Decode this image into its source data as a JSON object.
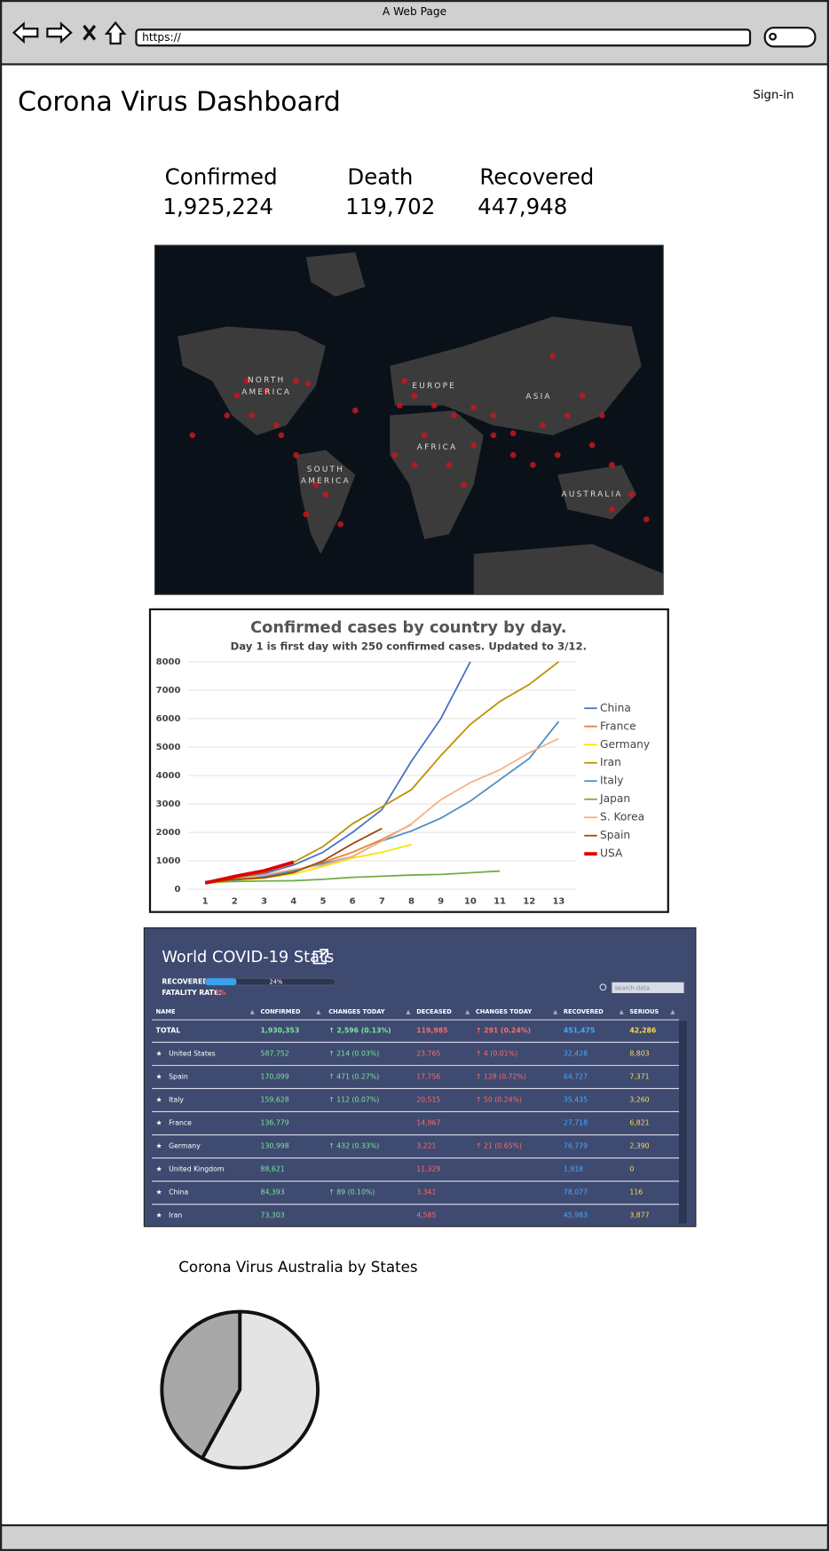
{
  "window": {
    "title": "A Web Page",
    "url": "https://"
  },
  "header": {
    "title": "Corona Virus Dashboard",
    "sign_in": "Sign-in"
  },
  "stats": [
    {
      "label": "Confirmed",
      "value": "1,925,224"
    },
    {
      "label": "Death",
      "value": "119,702"
    },
    {
      "label": "Recovered",
      "value": "447,948"
    }
  ],
  "map": {
    "labels": [
      "NORTH AMERICA",
      "EUROPE",
      "ASIA",
      "AFRICA",
      "SOUTH AMERICA",
      "AUSTRALIA"
    ]
  },
  "line_chart": {
    "type": "line",
    "title": "Confirmed cases by country by day.",
    "subtitle": "Day 1 is first day with 250 confirmed cases. Updated to 3/12.",
    "x": [
      1,
      2,
      3,
      4,
      5,
      6,
      7,
      8,
      9,
      10,
      11,
      12,
      13
    ],
    "xlim": [
      0.4,
      13.6
    ],
    "ylim": [
      0,
      8000
    ],
    "yticks": [
      0,
      1000,
      2000,
      3000,
      4000,
      5000,
      6000,
      7000,
      8000
    ],
    "grid": true,
    "legend": "right",
    "series": [
      {
        "name": "China",
        "color": "#4472c4",
        "values": [
          270,
          380,
          550,
          850,
          1300,
          2000,
          2800,
          4500,
          6000,
          8000,
          null,
          null,
          null
        ]
      },
      {
        "name": "France",
        "color": "#ed7d31",
        "values": [
          210,
          300,
          420,
          650,
          950,
          1300,
          1750,
          2280,
          null,
          null,
          null,
          null,
          null
        ]
      },
      {
        "name": "Germany",
        "color": "#f2e600",
        "values": [
          200,
          280,
          400,
          540,
          800,
          1100,
          1300,
          1570,
          null,
          null,
          null,
          null,
          null
        ]
      },
      {
        "name": "Iran",
        "color": "#bf9000",
        "values": [
          250,
          400,
          600,
          950,
          1500,
          2300,
          2900,
          3500,
          4700,
          5800,
          6600,
          7200,
          8000
        ]
      },
      {
        "name": "Italy",
        "color": "#4a8ec2",
        "values": [
          230,
          320,
          450,
          650,
          900,
          1150,
          1700,
          2050,
          2500,
          3100,
          3850,
          4600,
          5900
        ]
      },
      {
        "name": "Japan",
        "color": "#70ad47",
        "values": [
          250,
          270,
          290,
          300,
          350,
          420,
          460,
          500,
          520,
          580,
          640,
          null,
          null
        ]
      },
      {
        "name": "S. Korea",
        "color": "#f4b183",
        "values": [
          230,
          350,
          500,
          700,
          850,
          1150,
          1700,
          2300,
          3150,
          3750,
          4200,
          4800,
          5300
        ]
      },
      {
        "name": "Spain",
        "color": "#9e480e",
        "values": [
          230,
          350,
          400,
          590,
          1000,
          1600,
          2140,
          null,
          null,
          null,
          null,
          null,
          null
        ]
      },
      {
        "name": "USA",
        "color": "#e00000",
        "values": [
          220,
          450,
          650,
          950,
          null,
          null,
          null,
          null,
          null,
          null,
          null,
          null,
          null
        ]
      }
    ]
  },
  "stats_table": {
    "title": "World COVID-19 Stats",
    "recovered": {
      "label": "RECOVERED:",
      "value": 24,
      "value_label": "24%"
    },
    "fatality": {
      "label": "FATALITY RATE:",
      "value_label": "7%"
    },
    "search_placeholder": "search data",
    "columns": [
      "NAME",
      "CONFIRMED",
      "CHANGES TODAY",
      "DECEASED",
      "CHANGES TODAY",
      "RECOVERED",
      "SERIOUS"
    ],
    "rows": [
      [
        "TOTAL",
        "1,930,353",
        "↑ 2,596 (0.13%)",
        "119,985",
        "↑ 291 (0.24%)",
        "451,475",
        "42,286"
      ],
      [
        "United States",
        "587,752",
        "↑ 214 (0.03%)",
        "23,765",
        "↑ 4 (0.01%)",
        "32,428",
        "8,803"
      ],
      [
        "Spain",
        "170,099",
        "↑ 471 (0.27%)",
        "17,756",
        "↑ 128 (0.72%)",
        "64,727",
        "7,371"
      ],
      [
        "Italy",
        "159,628",
        "↑ 112 (0.07%)",
        "20,515",
        "↑ 50 (0.24%)",
        "35,435",
        "3,260"
      ],
      [
        "France",
        "136,779",
        null,
        "14,967",
        null,
        "27,718",
        "6,821"
      ],
      [
        "Germany",
        "130,998",
        "↑ 432 (0.33%)",
        "3,221",
        "↑ 21 (0.65%)",
        "76,779",
        "2,390"
      ],
      [
        "United Kingdom",
        "88,621",
        null,
        "11,329",
        null,
        "1,918",
        "0"
      ],
      [
        "China",
        "84,393",
        "↑ 89 (0.10%)",
        "3,341",
        null,
        "78,077",
        "116"
      ],
      [
        "Iran",
        "73,303",
        null,
        "4,585",
        null,
        "45,983",
        "3,877"
      ]
    ]
  },
  "pie": {
    "title": "Corona Virus Australia by States",
    "values": [
      58,
      42
    ],
    "colors": [
      "#e4e4e4",
      "#a8a8a8"
    ]
  }
}
